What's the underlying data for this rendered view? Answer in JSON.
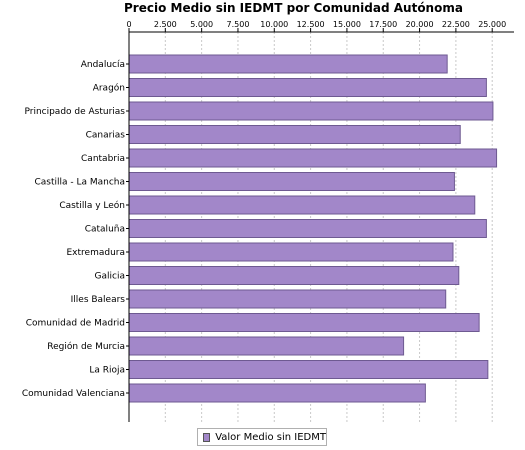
{
  "chart_data": {
    "type": "bar",
    "orientation": "horizontal",
    "title": "Precio Medio sin IEDMT por Comunidad Autónoma",
    "categories": [
      "Andalucía",
      "Aragón",
      "Principado de Asturias",
      "Canarias",
      "Cantabria",
      "Castilla - La Mancha",
      "Castilla y León",
      "Cataluña",
      "Extremadura",
      "Galicia",
      "Illes Balears",
      "Comunidad de Madrid",
      "Región de Murcia",
      "La Rioja",
      "Comunidad Valenciana"
    ],
    "series": [
      {
        "name": "Valor Medio sin IEDMT",
        "values": [
          21900,
          24600,
          25050,
          22800,
          25300,
          22400,
          23800,
          24600,
          22300,
          22700,
          21800,
          24100,
          18900,
          24700,
          20400
        ]
      }
    ],
    "x_ticks": [
      "0",
      "2.500",
      "5.000",
      "7.500",
      "10.000",
      "12.500",
      "15.000",
      "17.500",
      "20.000",
      "22.500",
      "25.000"
    ],
    "xlim": [
      0,
      26500
    ],
    "grid": true,
    "legend_position": "bottom",
    "colors": {
      "bar_fill": "#a287c9",
      "bar_stroke": "#6e5a91",
      "grid": "#c8c8c8",
      "axis": "#000000"
    }
  }
}
